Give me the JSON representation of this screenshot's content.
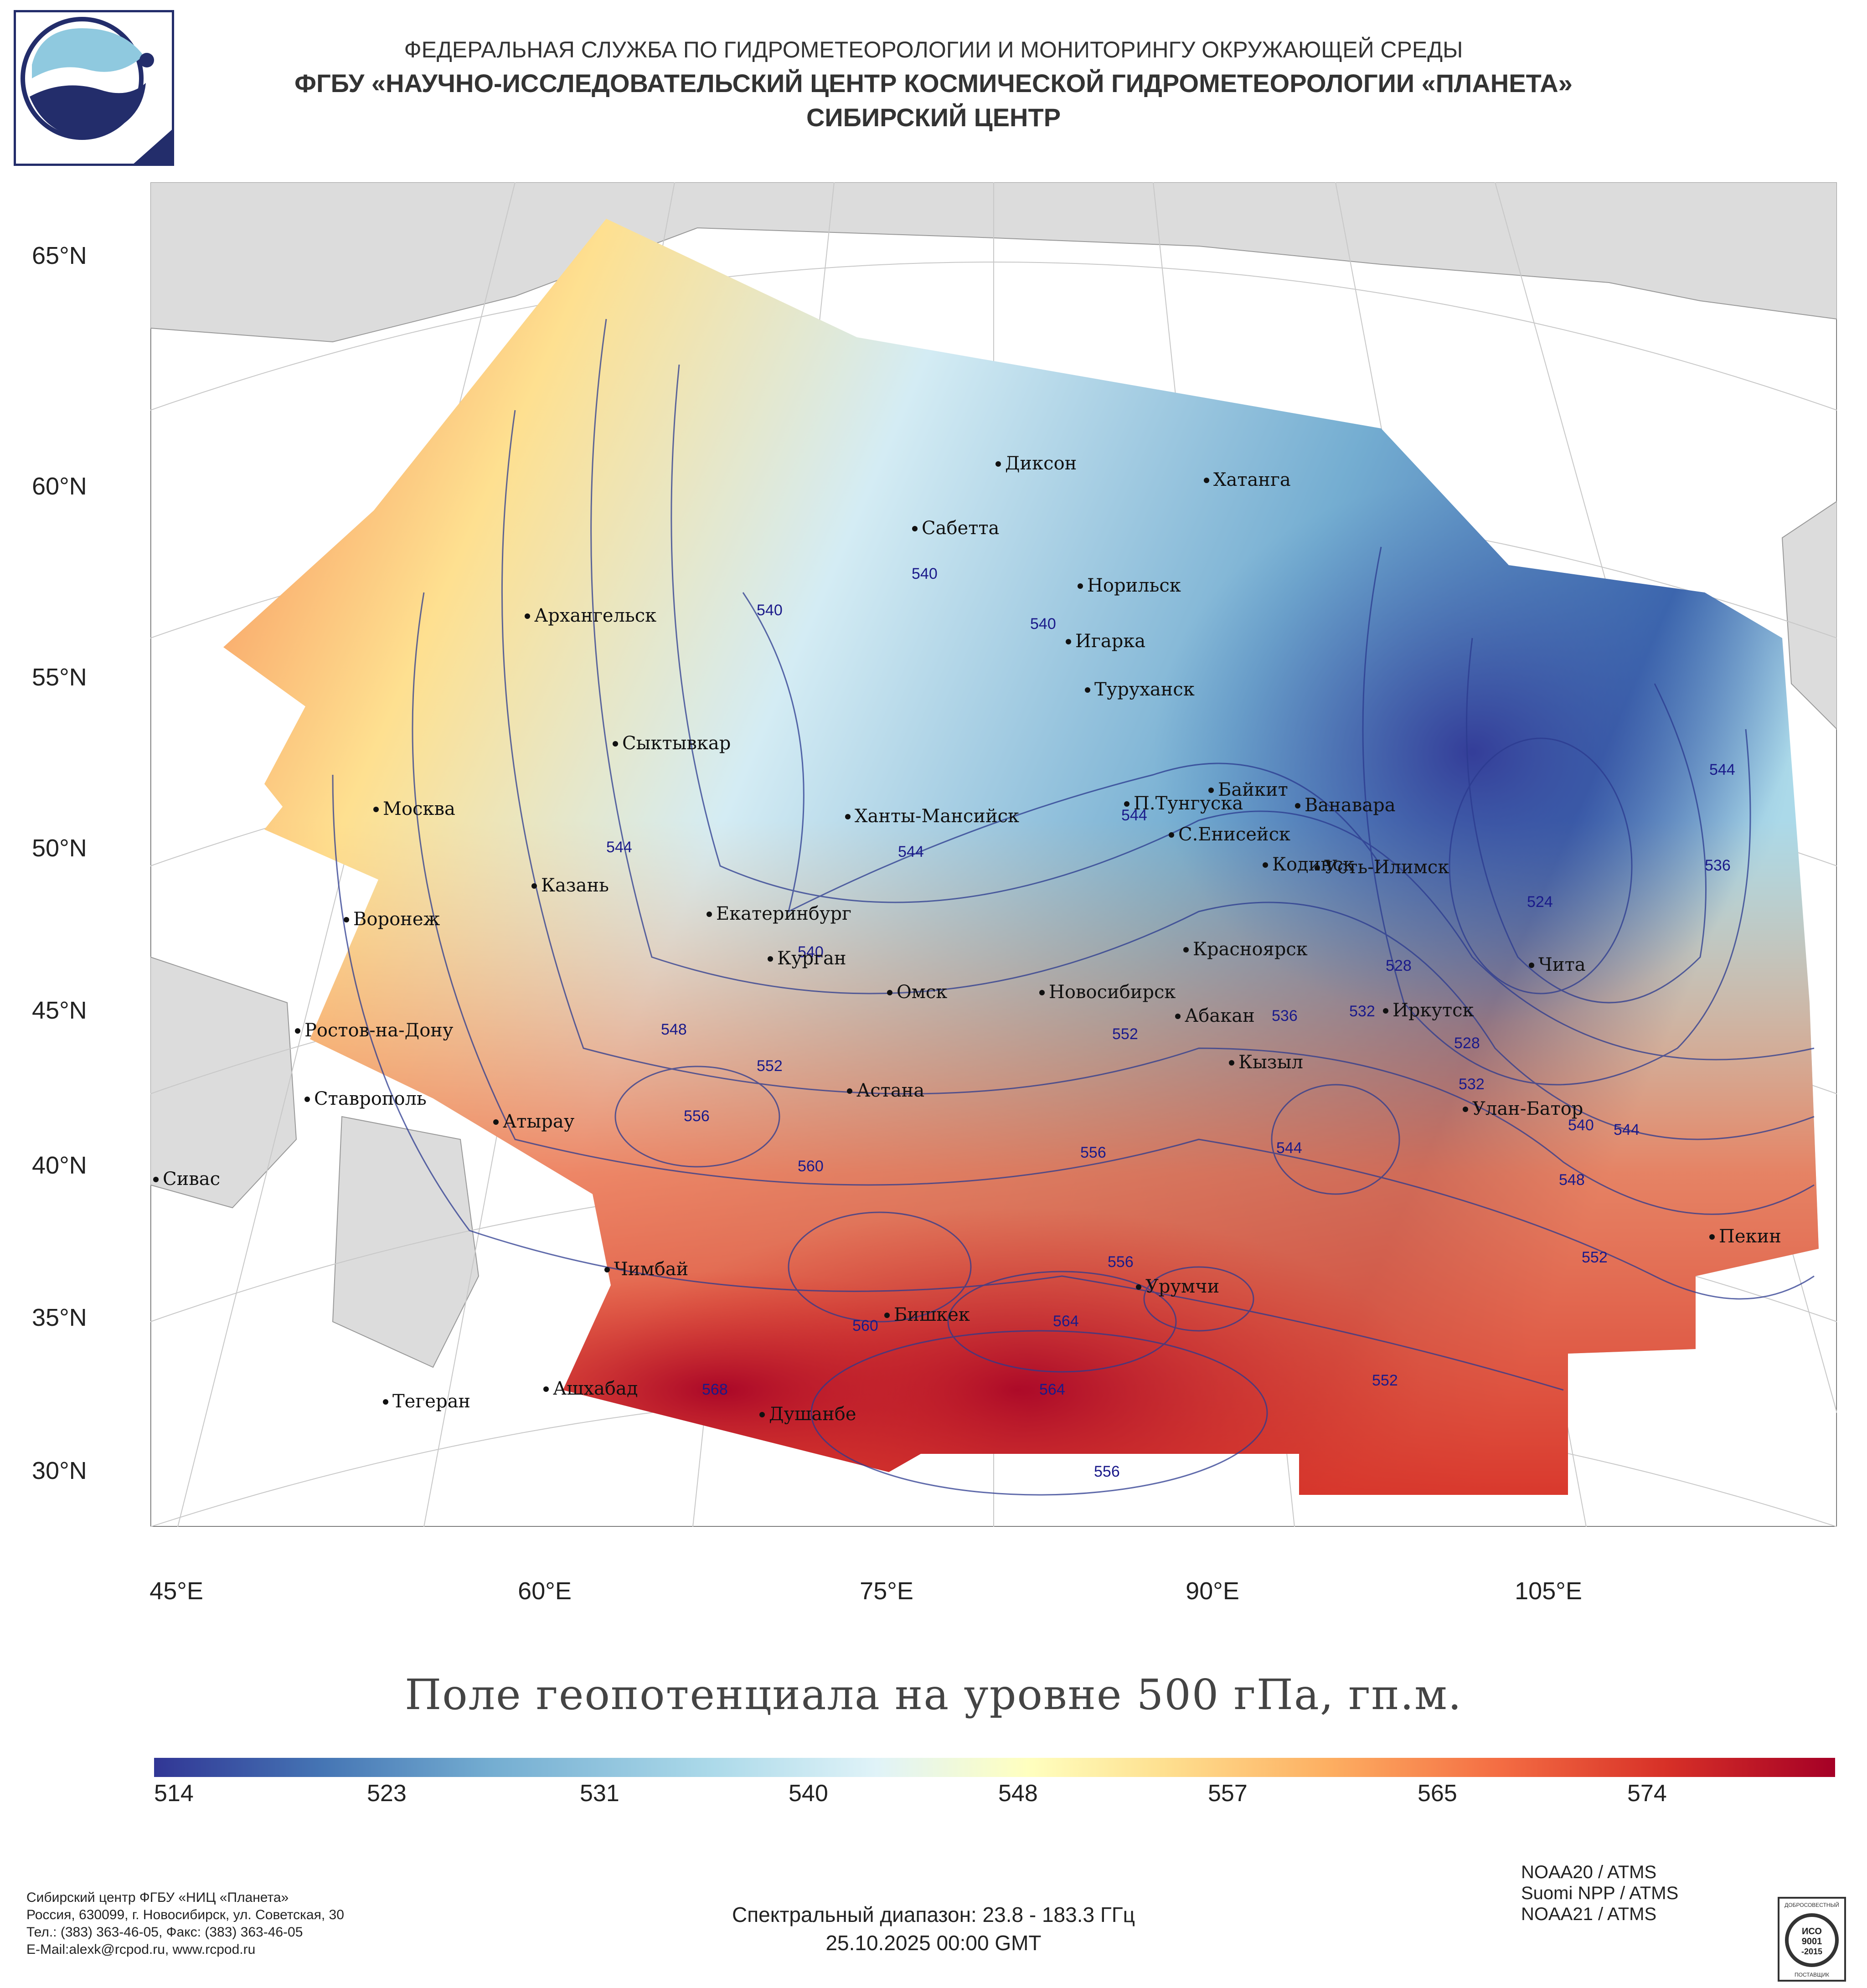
{
  "header": {
    "line1": "ФЕДЕРАЛЬНАЯ СЛУЖБА ПО ГИДРОМЕТЕОРОЛОГИИ И МОНИТОРИНГУ ОКРУЖАЮЩЕЙ СРЕДЫ",
    "line2": "ФГБУ «НАУЧНО-ИССЛЕДОВАТЕЛЬСКИЙ ЦЕНТР КОСМИЧЕСКОЙ ГИДРОМЕТЕОРОЛОГИИ «ПЛАНЕТА»",
    "line3": "СИБИРСКИЙ ЦЕНТР"
  },
  "map": {
    "lat_labels": [
      "65°N",
      "60°N",
      "55°N",
      "50°N",
      "45°N",
      "40°N",
      "35°N",
      "30°N"
    ],
    "lon_labels": [
      "45°E",
      "60°E",
      "75°E",
      "90°E",
      "105°E"
    ],
    "cities": [
      "Диксон",
      "Хатанга",
      "Сабетта",
      "Норильск",
      "Архангельск",
      "Игарка",
      "Туруханск",
      "Сыктывкар",
      "Байкит",
      "Москва",
      "П.Тунгуска",
      "Ванавара",
      "Ханты-Мансийск",
      "С.Енисейск",
      "Кодинск",
      "Усть-Илимск",
      "Казань",
      "Воронеж",
      "Екатеринбург",
      "Красноярск",
      "Курган",
      "Чита",
      "Омск",
      "Новосибирск",
      "Ростов-на-Дону",
      "Абакан",
      "Иркутск",
      "Кызыл",
      "Астана",
      "Ставрополь",
      "Улан-Батор",
      "Атырау",
      "Сивас",
      "Пекин",
      "Чимбай",
      "Урумчи",
      "Бишкек",
      "Ашхабад",
      "Тегеран",
      "Душанбе"
    ],
    "contour_labels": [
      "540",
      "540",
      "540",
      "544",
      "544",
      "540",
      "544",
      "548",
      "552",
      "556",
      "560",
      "564",
      "568",
      "552",
      "556",
      "544",
      "536",
      "532",
      "528",
      "524",
      "528",
      "532",
      "536",
      "540",
      "544",
      "548",
      "552",
      "556",
      "560",
      "552",
      "564",
      "556",
      "544"
    ]
  },
  "title": "Поле геопотенциала на уровне 500 гПа, гп.м.",
  "colorbar": {
    "ticks": [
      "514",
      "523",
      "531",
      "540",
      "548",
      "557",
      "565",
      "574"
    ],
    "min": 512,
    "max": 580,
    "colors": [
      "#313695",
      "#4575b4",
      "#74add1",
      "#abd9e9",
      "#e0f3f8",
      "#ffffbf",
      "#fee090",
      "#fdae61",
      "#f46d43",
      "#d73027",
      "#a50026"
    ]
  },
  "footer": {
    "addr1": "Сибирский центр ФГБУ «НИЦ «Планета»",
    "addr2": "Россия, 630099, г. Новосибирск, ул. Советская, 30",
    "addr3": "Тел.: (383) 363-46-05, Факс: (383) 363-46-05",
    "addr4": "E-Mail:alexk@rcpod.ru, www.rcpod.ru",
    "spectral": "Спектральный диапазон: 23.8 - 183.3 ГГц",
    "datetime": "25.10.2025 00:00 GMT",
    "sat1": "NOAA20 / ATMS",
    "sat2": "Suomi NPP / ATMS",
    "sat3": "NOAA21 / ATMS",
    "cert_top": "ДОБРОСОВЕСТНЫЙ",
    "cert_iso": "ИСО",
    "cert_num": "9001",
    "cert_year": "-2015",
    "cert_bottom": "ПОСТАВЩИК"
  }
}
